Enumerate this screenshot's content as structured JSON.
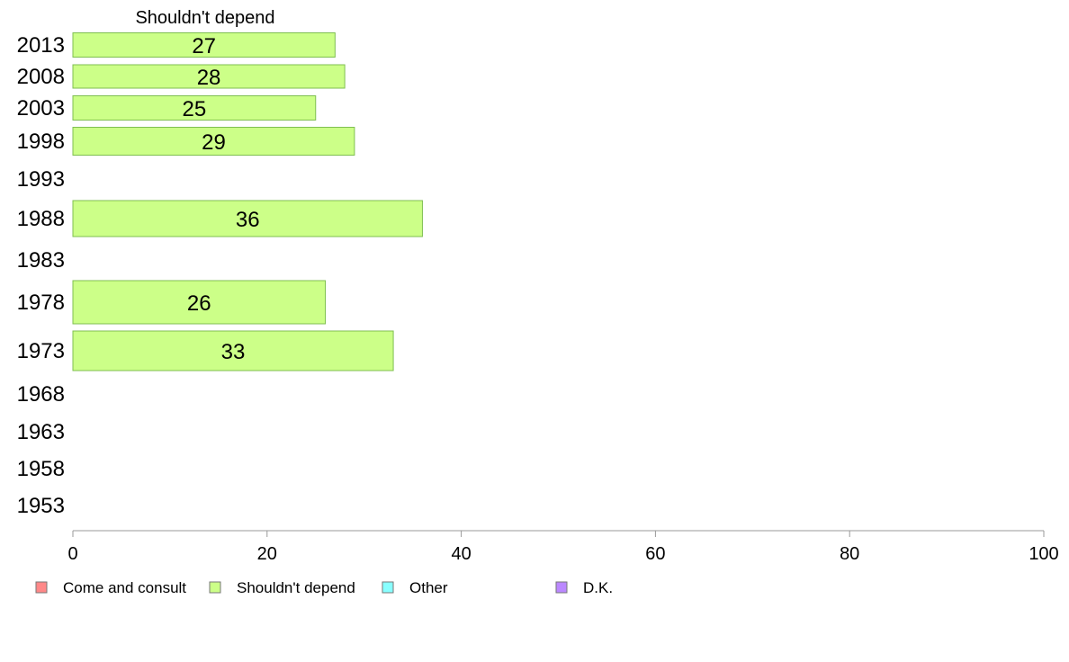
{
  "chart_data": {
    "type": "bar",
    "orientation": "horizontal",
    "panel_title": "Shouldn't depend",
    "categories": [
      "2013",
      "2008",
      "2003",
      "1998",
      "1993",
      "1988",
      "1983",
      "1978",
      "1973",
      "1968",
      "1963",
      "1958",
      "1953"
    ],
    "series": [
      {
        "name": "Shouldn't depend",
        "values": [
          27,
          28,
          25,
          29,
          null,
          36,
          null,
          26,
          33,
          null,
          null,
          null,
          null
        ],
        "color": "#ccff88"
      }
    ],
    "xlim": [
      0,
      100
    ],
    "xticks": [
      "0",
      "20",
      "40",
      "60",
      "80",
      "100"
    ],
    "grid": false,
    "legend_position": "bottom",
    "legend": [
      {
        "label": "Come and consult",
        "color": "#ff8888"
      },
      {
        "label": "Shouldn't depend",
        "color": "#ccff88"
      },
      {
        "label": "Other",
        "color": "#88ffff"
      },
      {
        "label": "D.K.",
        "color": "#bb88ff"
      }
    ],
    "bar_stroke_color": "#7fbf50",
    "axis_color": "#999999"
  }
}
